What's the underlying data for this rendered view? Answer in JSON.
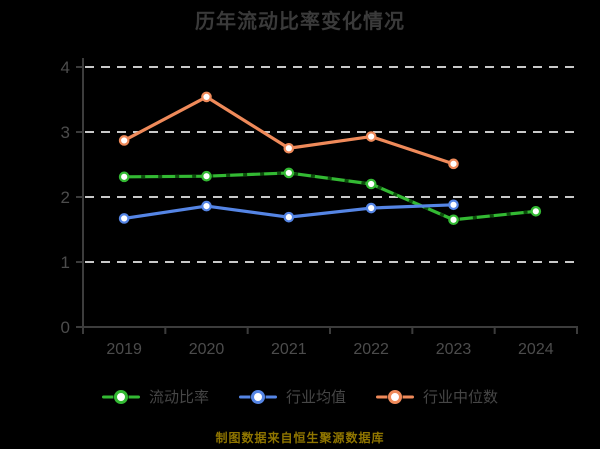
{
  "title": "历年流动比率变化情况",
  "footer": "制图数据来自恒生聚源数据库",
  "colors": {
    "background": "#000000",
    "grid": "#c9c9c9",
    "axis": "#3c3c3c",
    "title_text": "#3a3a3a",
    "tick_text": "#4c4c4c",
    "legend_text": "#464646",
    "footer_text": "#8f7500",
    "marker_fill": "#ffffff"
  },
  "chart_data": {
    "type": "line",
    "title": "历年流动比率变化情况",
    "categories": [
      "2019",
      "2020",
      "2021",
      "2022",
      "2023",
      "2024"
    ],
    "series": [
      {
        "name": "流动比率",
        "color": "#33b933",
        "values": [
          2.31,
          2.32,
          2.37,
          2.2,
          1.65,
          1.78
        ],
        "dash_overlay": true
      },
      {
        "name": "行业均值",
        "color": "#5585e5",
        "values": [
          1.67,
          1.86,
          1.69,
          1.83,
          1.88,
          null
        ]
      },
      {
        "name": "行业中位数",
        "color": "#ef8a5a",
        "values": [
          2.87,
          3.54,
          2.75,
          2.93,
          2.51,
          null
        ]
      }
    ],
    "ylim": [
      0,
      4
    ],
    "yticks": [
      0,
      1,
      2,
      3,
      4
    ],
    "grid": "horizontal dashed",
    "legend_position": "bottom",
    "xlabel": "",
    "ylabel": ""
  }
}
